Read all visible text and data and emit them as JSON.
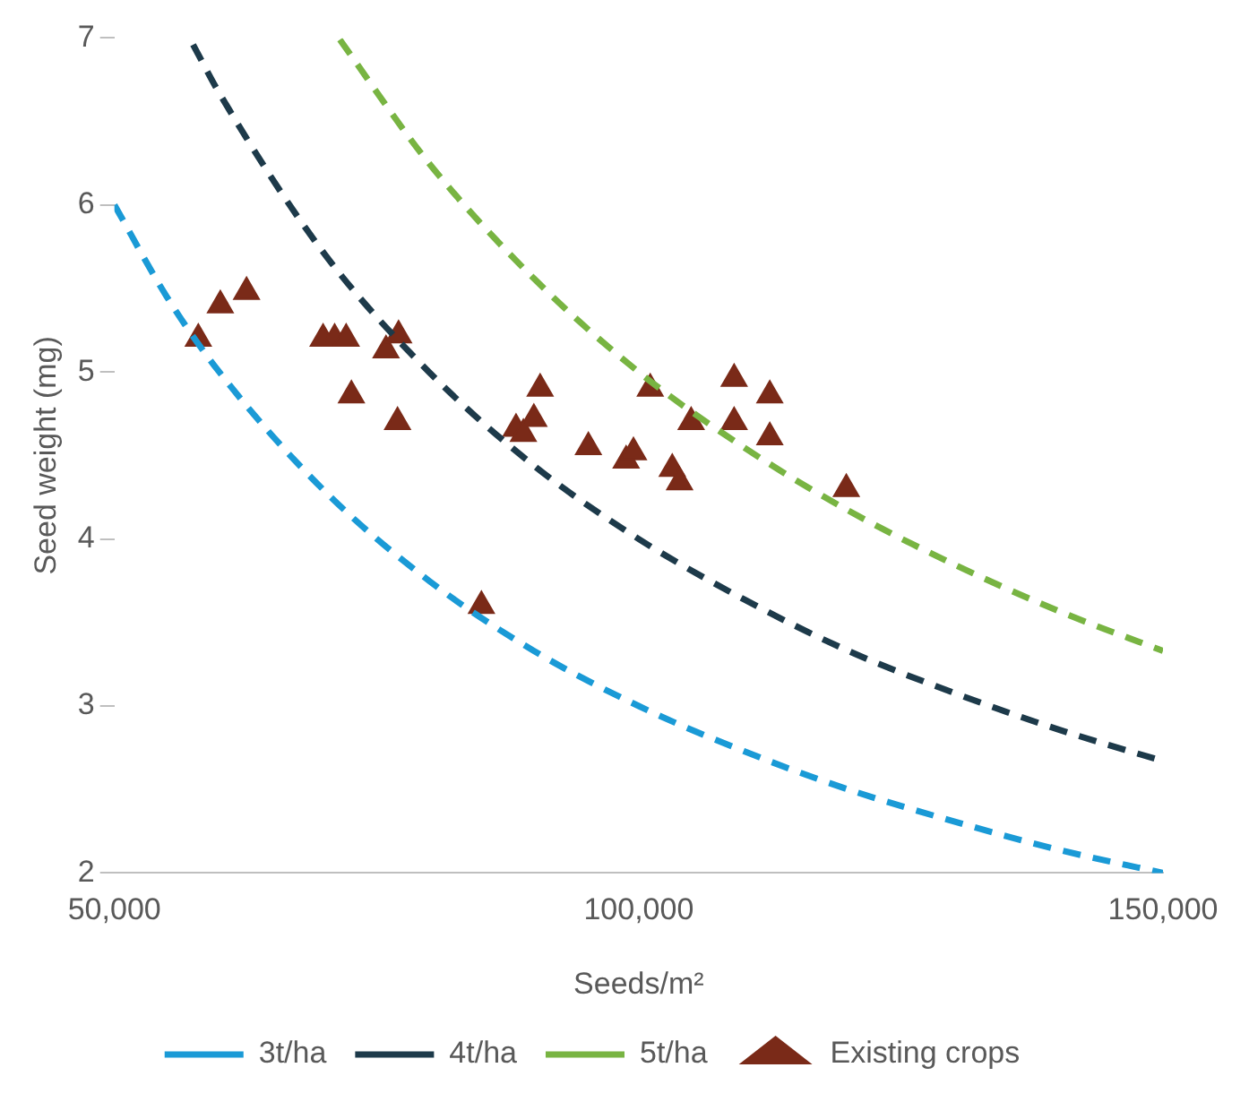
{
  "chart_data": {
    "type": "scatter",
    "xlabel": "Seeds/m²",
    "ylabel": "Seed weight (mg)",
    "xlim": [
      50000,
      150000
    ],
    "xticks": [
      {
        "value": 50000,
        "label": "50,000"
      },
      {
        "value": 100000,
        "label": "100,000"
      },
      {
        "value": 150000,
        "label": "150,000"
      }
    ],
    "ylim": [
      2,
      7
    ],
    "yticks": [
      2,
      3,
      4,
      5,
      6,
      7
    ],
    "grid": false,
    "legend": "bottom",
    "series": [
      {
        "name": "3t/ha",
        "type": "line",
        "line_style": "dashed",
        "marker": "none",
        "color": "#1a9ad6",
        "x": [
          50000,
          55000,
          60000,
          70000,
          80000,
          90000,
          100000,
          110000,
          120000,
          130000,
          140000,
          150000
        ],
        "values": [
          6,
          5.45,
          5,
          4.29,
          3.75,
          3.33,
          3,
          2.73,
          2.5,
          2.31,
          2.14,
          2
        ]
      },
      {
        "name": "4t/ha",
        "type": "line",
        "line_style": "dashed",
        "marker": "none",
        "color": "#1d3a4a",
        "x": [
          57500,
          60000,
          70000,
          80000,
          90000,
          100000,
          110000,
          120000,
          130000,
          140000,
          150000
        ],
        "values": [
          6.96,
          6.67,
          5.71,
          5,
          4.44,
          4,
          3.64,
          3.33,
          3.08,
          2.86,
          2.67
        ]
      },
      {
        "name": "5t/ha",
        "type": "line",
        "line_style": "dashed",
        "marker": "none",
        "color": "#78b442",
        "x": [
          71500,
          80000,
          90000,
          100000,
          110000,
          120000,
          130000,
          140000,
          150000
        ],
        "values": [
          6.99,
          6.25,
          5.56,
          5,
          4.55,
          4.17,
          3.85,
          3.57,
          3.33
        ]
      },
      {
        "name": "Existing crops",
        "marker": "triangle",
        "color": "#7a2a18",
        "x": [
          58000,
          60100,
          62600,
          69900,
          71000,
          72100,
          72600,
          75900,
          77100,
          77000,
          85000,
          88300,
          89000,
          90000,
          90600,
          95200,
          98800,
          99500,
          101100,
          103200,
          103900,
          105000,
          109100,
          109100,
          112500,
          112500,
          119800
        ],
        "values": [
          5.2,
          5.4,
          5.48,
          5.2,
          5.2,
          5.2,
          4.86,
          5.13,
          5.22,
          4.7,
          3.6,
          4.66,
          4.63,
          4.72,
          4.9,
          4.55,
          4.47,
          4.52,
          4.9,
          4.42,
          4.34,
          4.7,
          4.96,
          4.7,
          4.86,
          4.61,
          4.3
        ]
      }
    ]
  }
}
